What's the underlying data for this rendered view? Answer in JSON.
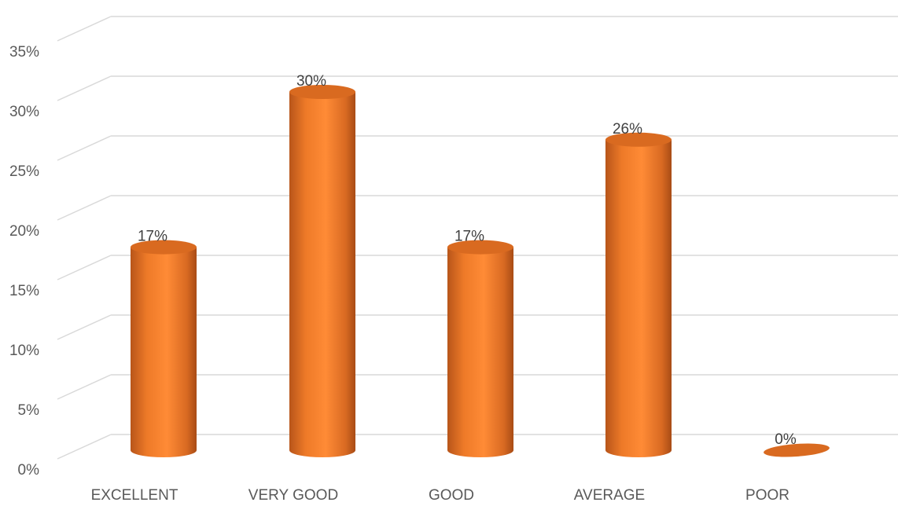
{
  "chart_data": {
    "type": "bar",
    "style": "3d-cylinder",
    "title": "",
    "xlabel": "",
    "ylabel": "",
    "categories": [
      "EXCELLENT",
      "VERY GOOD",
      "GOOD",
      "AVERAGE",
      "POOR"
    ],
    "values": [
      17,
      30,
      17,
      26,
      0
    ],
    "data_labels": [
      "17%",
      "30%",
      "17%",
      "26%",
      "0%"
    ],
    "ylim": [
      0,
      35
    ],
    "yticks": [
      0,
      5,
      10,
      15,
      20,
      25,
      30,
      35
    ],
    "ytick_labels": [
      "0%",
      "5%",
      "10%",
      "15%",
      "20%",
      "25%",
      "30%",
      "35%"
    ],
    "grid": true,
    "legend": "none",
    "colors": {
      "bar": "#f5842e",
      "bar_dark": "#b8551a",
      "bar_top": "#d96a20",
      "grid": "#d9d9d9"
    }
  }
}
